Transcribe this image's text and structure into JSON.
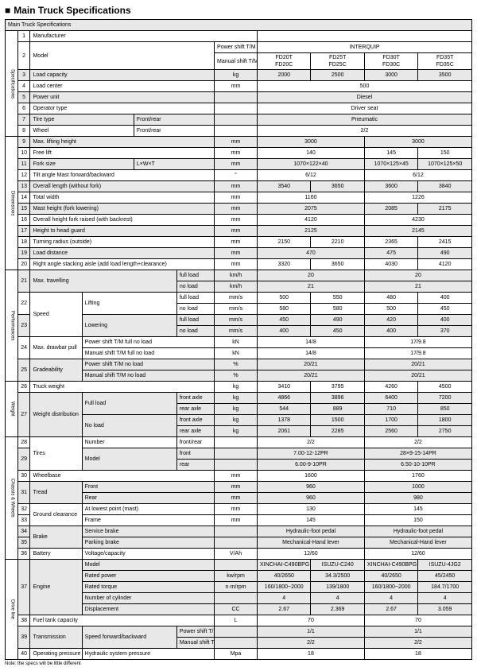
{
  "title": "Main Truck Specifications",
  "caption": "Main Truck Specifications",
  "brand": "INTERQUIP",
  "footnote": "Note: the specs will be little different",
  "hdr": {
    "ps": "Power shift T/M",
    "ms": "Manual shift T/M",
    "mA": [
      "FD20T",
      "FD25T",
      "FD30T",
      "FD35T"
    ],
    "mB": [
      "FD20C",
      "FD25C",
      "FD30C",
      "FD35C"
    ]
  },
  "rows": {
    "r1": {
      "n": "1",
      "l": "Manufacturer"
    },
    "r2": {
      "n": "2",
      "l": "Model"
    },
    "r3": {
      "n": "3",
      "l": "Load capacity",
      "u": "kg",
      "a": "2000",
      "b": "2500",
      "c": "3000",
      "d": "3500"
    },
    "r4": {
      "n": "4",
      "l": "Load center",
      "u": "mm",
      "v": "500"
    },
    "r5": {
      "n": "5",
      "l": "Power unit",
      "v": "Diesel"
    },
    "r6": {
      "n": "6",
      "l": "Operator type",
      "v": "Driver seat"
    },
    "r7": {
      "n": "7",
      "l": "Tire type",
      "l2": "Front/rear",
      "v": "Pneumatic"
    },
    "r8": {
      "n": "8",
      "l": "Wheel",
      "l2": "Front/rear",
      "v": "2/2"
    },
    "r9": {
      "n": "9",
      "l": "Max. lifting height",
      "u": "mm",
      "ab": "3000",
      "cd": "3000"
    },
    "r10": {
      "n": "10",
      "l": "Free lift",
      "u": "mm",
      "ab": "140",
      "c": "145",
      "d": "150"
    },
    "r11": {
      "n": "11",
      "l": "Fork size",
      "l2": "L×W×T",
      "u": "mm",
      "ab": "1070×122×40",
      "c": "1070×125×45",
      "d": "1070×125×50"
    },
    "r12": {
      "n": "12",
      "l": "Tilt angle Mast forward/backward",
      "u": "°",
      "ab": "6/12",
      "cd": "6/12"
    },
    "r13": {
      "n": "13",
      "l": "Overall length (without fork)",
      "u": "mm",
      "a": "3540",
      "b": "3650",
      "c": "3600",
      "d": "3840"
    },
    "r14": {
      "n": "14",
      "l": "Total width",
      "u": "mm",
      "ab": "1160",
      "cd": "1226"
    },
    "r15": {
      "n": "15",
      "l": "Mast height (fork lowering)",
      "u": "mm",
      "ab": "2075",
      "c": "2085",
      "d": "2175"
    },
    "r16": {
      "n": "16",
      "l": "Overall height fork raised (with backrest)",
      "u": "mm",
      "ab": "4120",
      "cd": "4230"
    },
    "r17": {
      "n": "17",
      "l": "Height to head guard",
      "u": "mm",
      "ab": "2125",
      "cd": "2145"
    },
    "r18": {
      "n": "18",
      "l": "Turning radius (outside)",
      "u": "mm",
      "a": "2150",
      "b": "2210",
      "c": "2365",
      "d": "2415"
    },
    "r19": {
      "n": "19",
      "l": "Load distance",
      "u": "mm",
      "ab": "470",
      "c": "475",
      "d": "490"
    },
    "r20": {
      "n": "20",
      "l": "Right angle stacking aisle (add load length+clearance)",
      "u": "mm",
      "a": "3320",
      "b": "3650",
      "c": "4030",
      "d": "4120"
    },
    "r21": {
      "n": "21",
      "l": "Max. travelling",
      "f": "full load",
      "u": "km/h",
      "ab": "20",
      "cd": "20"
    },
    "r21b": {
      "f": "no load",
      "u": "km/h",
      "ab": "21",
      "cd": "21"
    },
    "r22": {
      "n": "22",
      "l": "Speed",
      "l2": "Lifting",
      "f": "full load",
      "u": "mm/s",
      "a": "500",
      "b": "550",
      "c": "480",
      "d": "400"
    },
    "r22b": {
      "f": "no load",
      "u": "mm/s",
      "a": "580",
      "b": "580",
      "c": "500",
      "d": "450"
    },
    "r23": {
      "n": "23",
      "l2": "Lowering",
      "f": "full load",
      "u": "mm/s",
      "a": "450",
      "b": "490",
      "c": "420",
      "d": "400"
    },
    "r23b": {
      "f": "no load",
      "u": "mm/s",
      "a": "400",
      "b": "450",
      "c": "400",
      "d": "370"
    },
    "r24": {
      "n": "24",
      "l": "Max. drawbar pull",
      "l2": "Power shift T/M full no load",
      "u": "kN",
      "ab": "14/8",
      "cd": "17/9.8"
    },
    "r24b": {
      "l2": "Manual shift T/M full no load",
      "u": "kN",
      "ab": "14/8",
      "cd": "17/9.8"
    },
    "r25": {
      "n": "25",
      "l": "Gradeability",
      "l2": "Power shift T/M no load",
      "u": "%",
      "ab": "20/21",
      "cd": "20/21"
    },
    "r25b": {
      "l2": "Manual shift T/M no load",
      "u": "%",
      "ab": "20/21",
      "cd": "20/21"
    },
    "r26": {
      "n": "26",
      "l": "Truck weight",
      "u": "kg",
      "a": "3410",
      "b": "3795",
      "c": "4260",
      "d": "4500"
    },
    "r27": {
      "n": "27",
      "l": "Weight distribution",
      "l2": "Full load",
      "f": "front axle",
      "u": "kg",
      "a": "4866",
      "b": "3896",
      "c": "6400",
      "d": "7200"
    },
    "r27b": {
      "f": "rear axle",
      "u": "kg",
      "a": "544",
      "b": "889",
      "c": "710",
      "d": "850"
    },
    "r27c": {
      "l2": "No load",
      "f": "front axle",
      "u": "kg",
      "a": "1378",
      "b": "1500",
      "c": "1700",
      "d": "1800"
    },
    "r27d": {
      "f": "rear axle",
      "u": "kg",
      "a": "2061",
      "b": "2285",
      "c": "2560",
      "d": "2750"
    },
    "r28": {
      "n": "28",
      "l": "Tires",
      "l2": "Number",
      "f": "front/rear",
      "ab": "2/2",
      "cd": "2/2"
    },
    "r29": {
      "n": "29",
      "l2": "Model",
      "f": "front",
      "ab": "7.00-12-12PR",
      "cd": "28×9-15-14PR"
    },
    "r29b": {
      "f": "rear",
      "ab": "6.00-9-10PR",
      "cd": "6.50-10-10PR"
    },
    "r30": {
      "n": "30",
      "l": "Wheelbase",
      "u": "mm",
      "ab": "1600",
      "cd": "1760"
    },
    "r31": {
      "n": "31",
      "l": "Tread",
      "l2": "Front",
      "u": "mm",
      "ab": "960",
      "cd": "1000"
    },
    "r31b": {
      "l2": "Rear",
      "u": "mm",
      "ab": "960",
      "cd": "980"
    },
    "r32": {
      "n": "32",
      "l": "Ground clearance",
      "l2": "At lowest point (mast)",
      "u": "mm",
      "ab": "130",
      "cd": "145"
    },
    "r33": {
      "n": "33",
      "l2": "Frame",
      "u": "mm",
      "ab": "145",
      "cd": "150"
    },
    "r34": {
      "n": "34",
      "l": "Brake",
      "l2": "Service brake",
      "ab": "Hydraulic-foot pedal",
      "cd": "Hydraulic-foot pedal"
    },
    "r35": {
      "n": "35",
      "l2": "Parking brake",
      "ab": "Mechanical-Hand lever",
      "cd": "Mechanical-Hand lever"
    },
    "r36": {
      "n": "36",
      "l": "Battery",
      "l2": "Voltage/capacity",
      "u": "V/Ah",
      "ab": "12/60",
      "cd": "12/60"
    },
    "r37": {
      "n": "37",
      "l": "Engine",
      "l2": "Model",
      "a": "XINCHAI-C490BPG",
      "b": "ISUZU-C240",
      "c": "XINCHAI-C490BPG",
      "d": "ISUZU-4JG2"
    },
    "r37b": {
      "l2": "Rated power",
      "u": "kw/rpm",
      "a": "40/2650",
      "b": "34.3/2500",
      "c": "40/2650",
      "d": "45/2450"
    },
    "r37c": {
      "l2": "Rated torque",
      "u": "n·m/rpm",
      "a": "160/1800~2000",
      "b": "139/1800",
      "c": "160/1800~2000",
      "d": "184.7/1700"
    },
    "r37d": {
      "l2": "Number of cylinder",
      "a": "4",
      "b": "4",
      "c": "4",
      "d": "4"
    },
    "r37e": {
      "l2": "Displacement",
      "u": "CC",
      "a": "2.67",
      "b": "2.369",
      "c": "2.67",
      "d": "3.059"
    },
    "r38": {
      "n": "38",
      "l": "Fuel tank capacity",
      "u": "L",
      "ab": "70",
      "cd": "70"
    },
    "r39": {
      "n": "39",
      "l": "Transmission",
      "l2": "Speed forward/backward",
      "f": "Power shift T/M",
      "ab": "1/1",
      "cd": "1/1"
    },
    "r39b": {
      "f": "Manual shift T/M",
      "ab": "2/2",
      "cd": "2/2"
    },
    "r40": {
      "n": "40",
      "l": "Operating pressure",
      "l2": "Hydraulic system pressure",
      "u": "Mpa",
      "ab": "18",
      "cd": "18"
    }
  },
  "sections": {
    "spec": "Specifications",
    "dim": "Dimensions",
    "perf": "Performances",
    "wt": "Weight",
    "cw": "Chassis & Wheels",
    "dl": "Drive line"
  }
}
